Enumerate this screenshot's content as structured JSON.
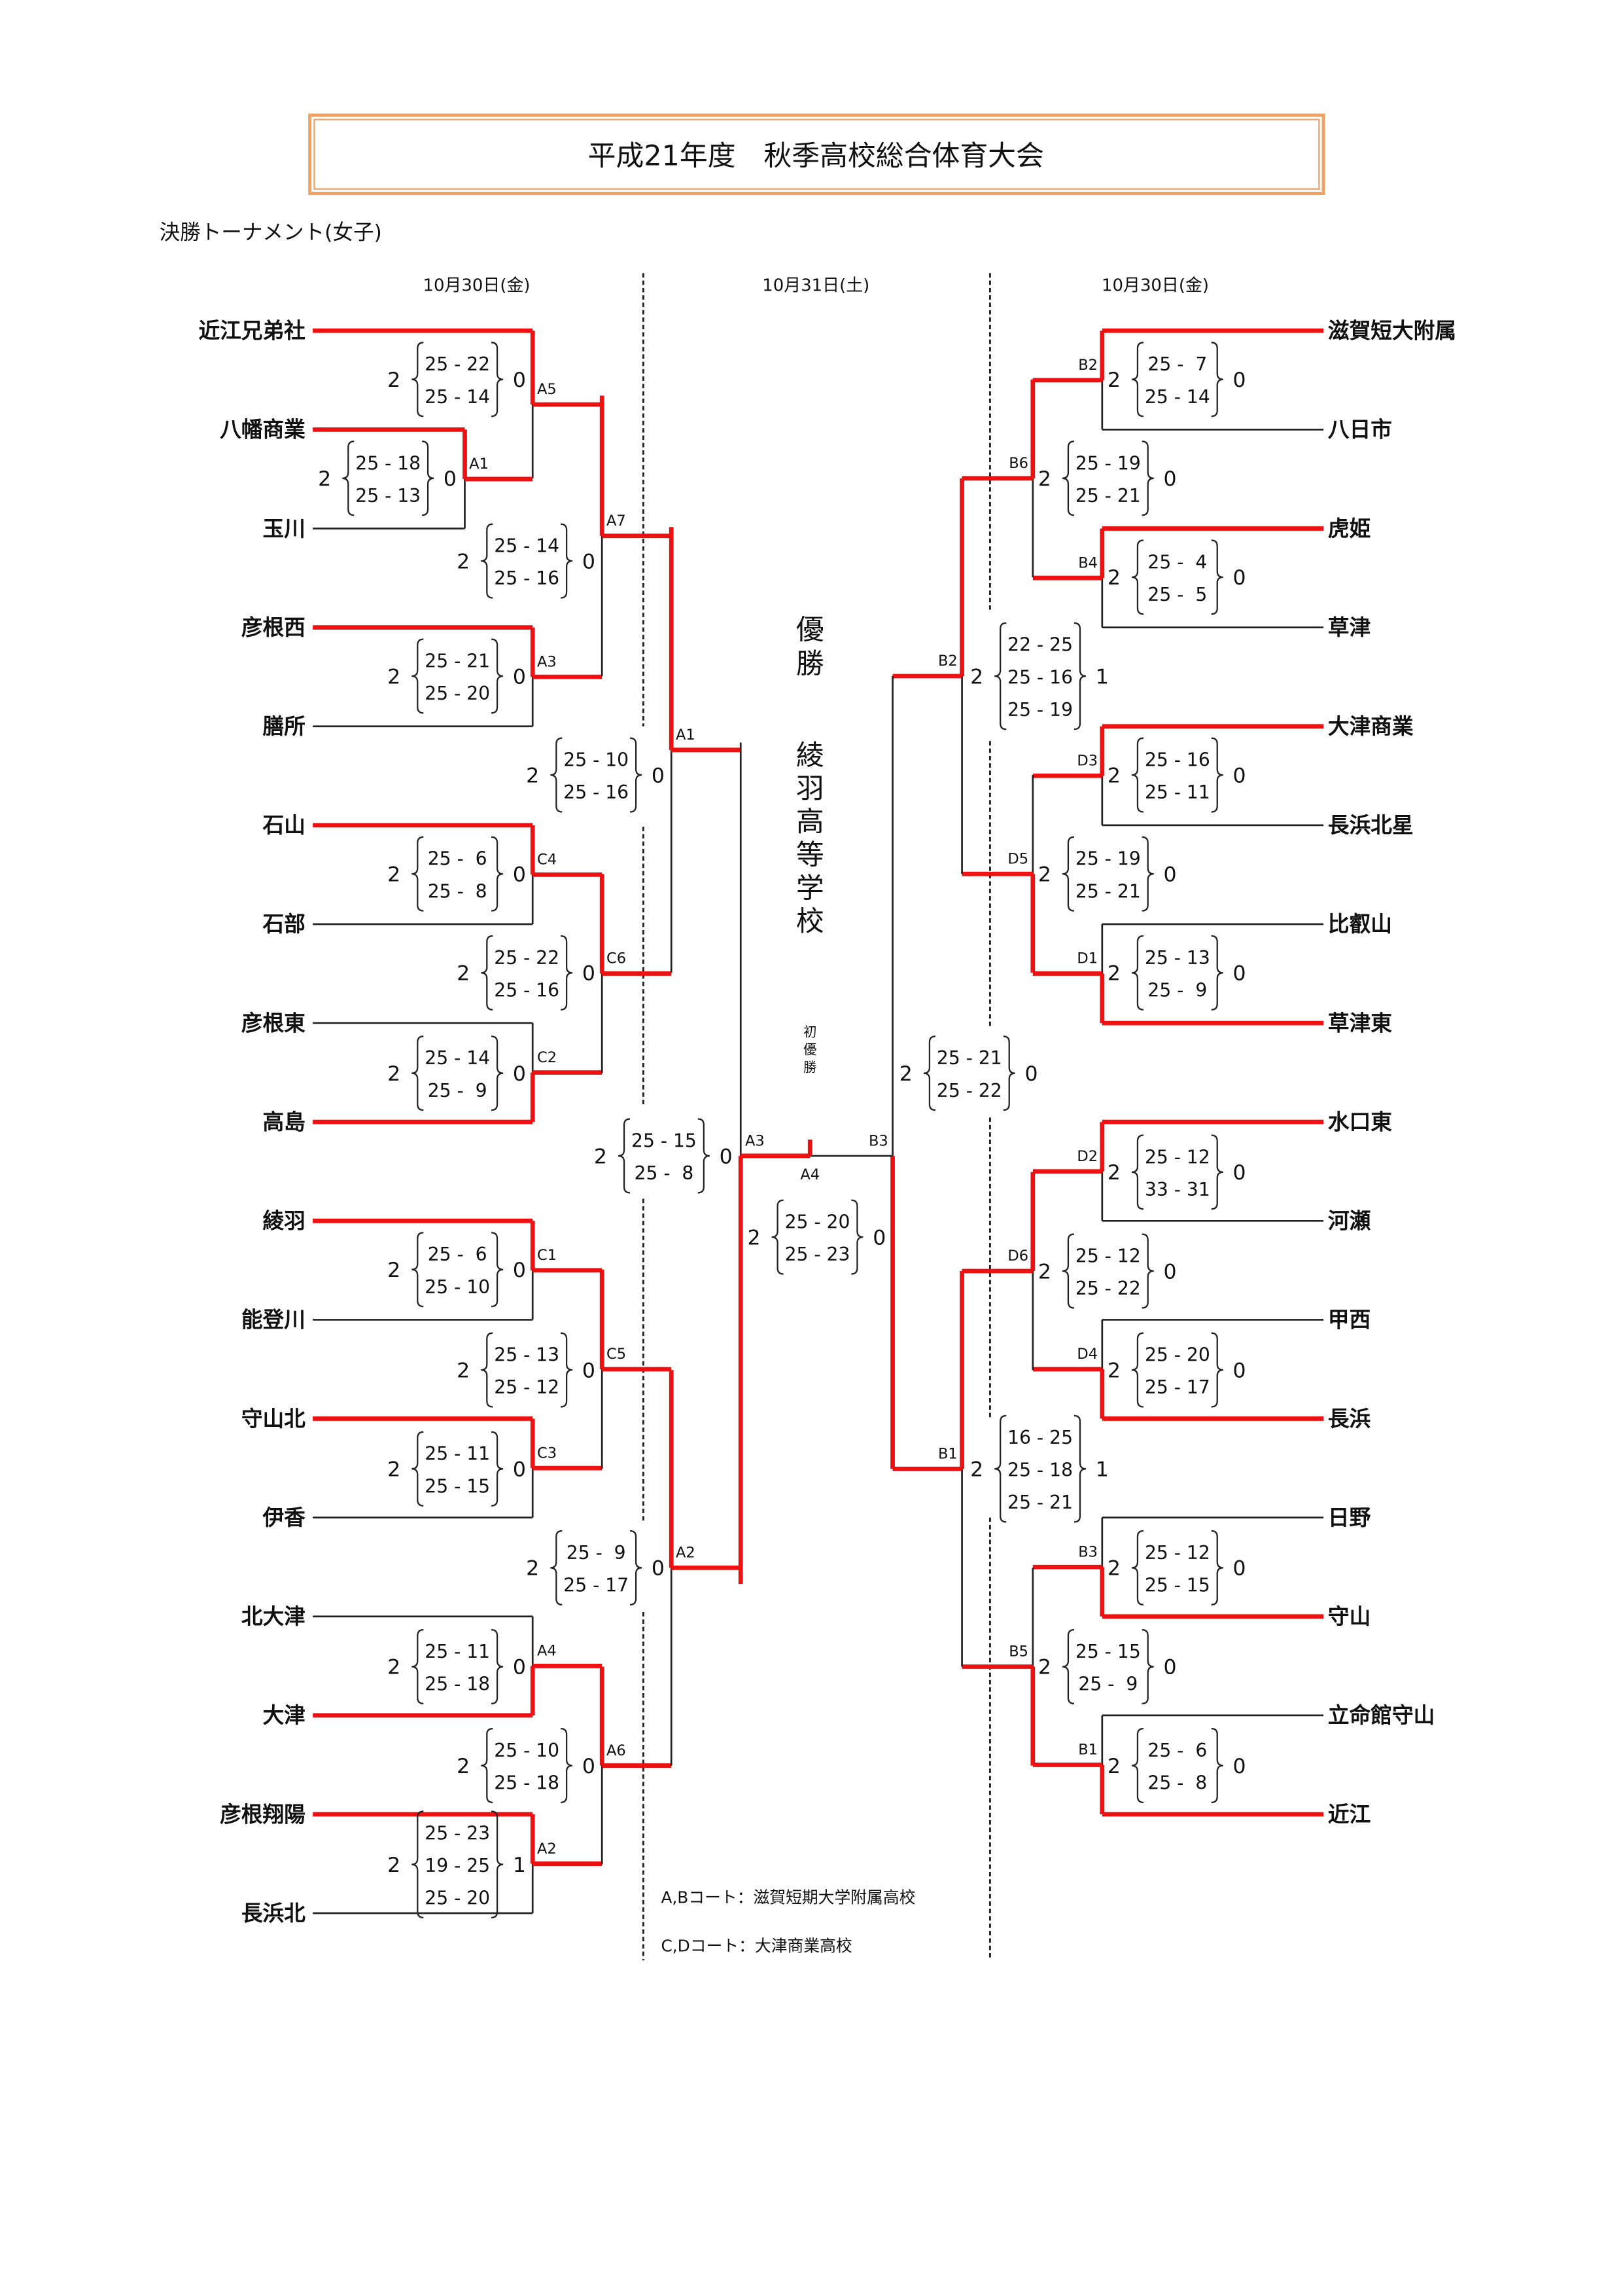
{
  "header": {
    "title": "平成21年度　秋季高校総合体育大会",
    "subtitle": "決勝トーナメント(女子)",
    "border_color": "#f0a060"
  },
  "dates": [
    "10月30日(金)",
    "10月31日(土)",
    "10月30日(金)"
  ],
  "colors": {
    "winner_line": "#ee1111",
    "line": "#222222"
  },
  "left_teams": [
    {
      "name": "近江兄弟社",
      "advanced": true
    },
    {
      "name": "八幡商業",
      "advanced": true
    },
    {
      "name": "玉川",
      "advanced": false
    },
    {
      "name": "彦根西",
      "advanced": true
    },
    {
      "name": "膳所",
      "advanced": false
    },
    {
      "name": "石山",
      "advanced": true
    },
    {
      "name": "石部",
      "advanced": false
    },
    {
      "name": "彦根東",
      "advanced": false
    },
    {
      "name": "高島",
      "advanced": true
    },
    {
      "name": "綾羽",
      "advanced": true
    },
    {
      "name": "能登川",
      "advanced": false
    },
    {
      "name": "守山北",
      "advanced": true
    },
    {
      "name": "伊香",
      "advanced": false
    },
    {
      "name": "北大津",
      "advanced": false
    },
    {
      "name": "大津",
      "advanced": true
    },
    {
      "name": "彦根翔陽",
      "advanced": true
    },
    {
      "name": "長浜北",
      "advanced": false
    }
  ],
  "right_teams": [
    {
      "name": "滋賀短大附属",
      "advanced": true
    },
    {
      "name": "八日市",
      "advanced": false
    },
    {
      "name": "虎姫",
      "advanced": true
    },
    {
      "name": "草津",
      "advanced": false
    },
    {
      "name": "大津商業",
      "advanced": true
    },
    {
      "name": "長浜北星",
      "advanced": false
    },
    {
      "name": "比叡山",
      "advanced": false
    },
    {
      "name": "草津東",
      "advanced": true
    },
    {
      "name": "水口東",
      "advanced": true
    },
    {
      "name": "河瀬",
      "advanced": false
    },
    {
      "name": "甲西",
      "advanced": false
    },
    {
      "name": "長浜",
      "advanced": true
    },
    {
      "name": "日野",
      "advanced": false
    },
    {
      "name": "守山",
      "advanced": true
    },
    {
      "name": "立命館守山",
      "advanced": false
    },
    {
      "name": "近江",
      "advanced": true
    }
  ],
  "matches": [
    {
      "label": "A5",
      "won": "2",
      "lost": "0",
      "sets": [
        "25 - 22",
        "25 - 14"
      ]
    },
    {
      "label": "A1",
      "won": "2",
      "lost": "0",
      "sets": [
        "25 - 18",
        "25 - 13"
      ]
    },
    {
      "label": "A3",
      "won": "2",
      "lost": "0",
      "sets": [
        "25 - 21",
        "25 - 20"
      ]
    },
    {
      "label": "A7",
      "won": "2",
      "lost": "0",
      "sets": [
        "25 - 14",
        "25 - 16"
      ]
    },
    {
      "label": "C4",
      "won": "2",
      "lost": "0",
      "sets": [
        "25 -  6",
        "25 -  8"
      ]
    },
    {
      "label": "C2",
      "won": "2",
      "lost": "0",
      "sets": [
        "25 - 14",
        "25 -  9"
      ]
    },
    {
      "label": "C6",
      "won": "2",
      "lost": "0",
      "sets": [
        "25 - 22",
        "25 - 16"
      ]
    },
    {
      "label": "A1",
      "won": "2",
      "lost": "0",
      "sets": [
        "25 - 10",
        "25 - 16"
      ]
    },
    {
      "label": "C1",
      "won": "2",
      "lost": "0",
      "sets": [
        "25 -  6",
        "25 - 10"
      ]
    },
    {
      "label": "C3",
      "won": "2",
      "lost": "0",
      "sets": [
        "25 - 11",
        "25 - 15"
      ]
    },
    {
      "label": "C5",
      "won": "2",
      "lost": "0",
      "sets": [
        "25 - 13",
        "25 - 12"
      ]
    },
    {
      "label": "A4",
      "won": "2",
      "lost": "0",
      "sets": [
        "25 - 11",
        "25 - 18"
      ]
    },
    {
      "label": "A2",
      "won": "2",
      "lost": "1",
      "sets": [
        "25 - 23",
        "19 - 25",
        "25 - 20"
      ]
    },
    {
      "label": "A6",
      "won": "2",
      "lost": "0",
      "sets": [
        "25 - 10",
        "25 - 18"
      ]
    },
    {
      "label": "A2",
      "won": "2",
      "lost": "0",
      "sets": [
        "25 -  9",
        "25 - 17"
      ]
    },
    {
      "label": "A3",
      "won": "2",
      "lost": "0",
      "sets": [
        "25 - 15",
        "25 -  8"
      ]
    },
    {
      "label": "B2",
      "won": "2",
      "lost": "0",
      "sets": [
        "25 -  7",
        "25 - 14"
      ]
    },
    {
      "label": "B4",
      "won": "2",
      "lost": "0",
      "sets": [
        "25 -  4",
        "25 -  5"
      ]
    },
    {
      "label": "B6",
      "won": "2",
      "lost": "0",
      "sets": [
        "25 - 19",
        "25 - 21"
      ]
    },
    {
      "label": "D3",
      "won": "2",
      "lost": "0",
      "sets": [
        "25 - 16",
        "25 - 11"
      ]
    },
    {
      "label": "D1",
      "won": "2",
      "lost": "0",
      "sets": [
        "25 - 13",
        "25 -  9"
      ]
    },
    {
      "label": "D5",
      "won": "2",
      "lost": "0",
      "sets": [
        "25 - 19",
        "25 - 21"
      ]
    },
    {
      "label": "B2",
      "won": "2",
      "lost": "1",
      "sets": [
        "22 - 25",
        "25 - 16",
        "25 - 19"
      ]
    },
    {
      "label": "D2",
      "won": "2",
      "lost": "0",
      "sets": [
        "25 - 12",
        "33 - 31"
      ]
    },
    {
      "label": "D4",
      "won": "2",
      "lost": "0",
      "sets": [
        "25 - 20",
        "25 - 17"
      ]
    },
    {
      "label": "D6",
      "won": "2",
      "lost": "0",
      "sets": [
        "25 - 12",
        "25 - 22"
      ]
    },
    {
      "label": "B3",
      "won": "2",
      "lost": "0",
      "sets": [
        "25 - 12",
        "25 - 15"
      ]
    },
    {
      "label": "B1",
      "won": "2",
      "lost": "0",
      "sets": [
        "25 -  6",
        "25 -  8"
      ]
    },
    {
      "label": "B5",
      "won": "2",
      "lost": "0",
      "sets": [
        "25 - 15",
        "25 -  9"
      ]
    },
    {
      "label": "B1",
      "won": "2",
      "lost": "1",
      "sets": [
        "16 - 25",
        "25 - 18",
        "25 - 21"
      ]
    },
    {
      "label": "B3",
      "won": "2",
      "lost": "0",
      "sets": [
        "25 - 21",
        "25 - 22"
      ]
    },
    {
      "label": "A4",
      "won": "2",
      "lost": "0",
      "sets": [
        "25 - 20",
        "25 - 23"
      ]
    }
  ],
  "champion": {
    "heading": [
      "優",
      "勝"
    ],
    "school": [
      "綾",
      "羽",
      "高",
      "等",
      "学",
      "校"
    ],
    "note": [
      "初",
      "優",
      "勝"
    ]
  },
  "notes": [
    "A,Bコート：滋賀短期大学附属高校",
    "C,Dコート：大津商業高校"
  ]
}
